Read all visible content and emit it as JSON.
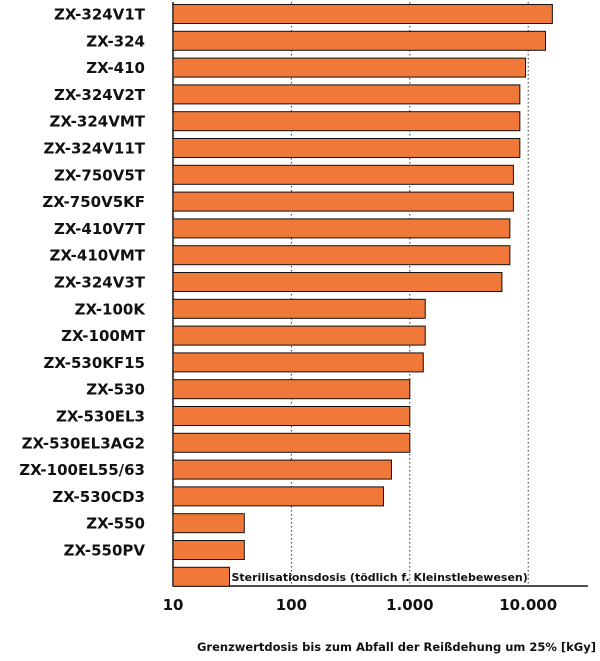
{
  "chart_data": {
    "type": "bar",
    "orientation": "horizontal",
    "x_scale": "log",
    "xlim": [
      10,
      20000
    ],
    "grid": "vertical dotted lines at major ticks",
    "bar_color": "#f07838",
    "bar_edge_color": "#111111",
    "categories": [
      "ZX-324V1T",
      "ZX-324",
      "ZX-410",
      "ZX-324V2T",
      "ZX-324VMT",
      "ZX-324V11T",
      "ZX-750V5T",
      "ZX-750V5KF",
      "ZX-410V7T",
      "ZX-410VMT",
      "ZX-324V3T",
      "ZX-100K",
      "ZX-100MT",
      "ZX-530KF15",
      "ZX-530",
      "ZX-530EL3",
      "ZX-530EL3AG2",
      "ZX-100EL55/63",
      "ZX-530CD3",
      "ZX-550",
      "ZX-550PV",
      ""
    ],
    "values": [
      16000,
      14000,
      9500,
      8500,
      8500,
      8500,
      7500,
      7500,
      7000,
      7000,
      6000,
      1350,
      1350,
      1300,
      1000,
      1000,
      1000,
      700,
      600,
      40,
      40,
      30
    ],
    "x_ticks": [
      10,
      100,
      1000,
      10000
    ],
    "x_tick_labels": [
      "10",
      "100",
      "1.000",
      "10.000"
    ],
    "xlabel": "Grenzwertdosis bis zum Abfall der Reißdehung um 25% [kGy]",
    "annotations": [
      {
        "text": "Sterilisationsdosis (tödlich f. Kleinstlebewesen)",
        "bar_index": 21
      }
    ]
  }
}
